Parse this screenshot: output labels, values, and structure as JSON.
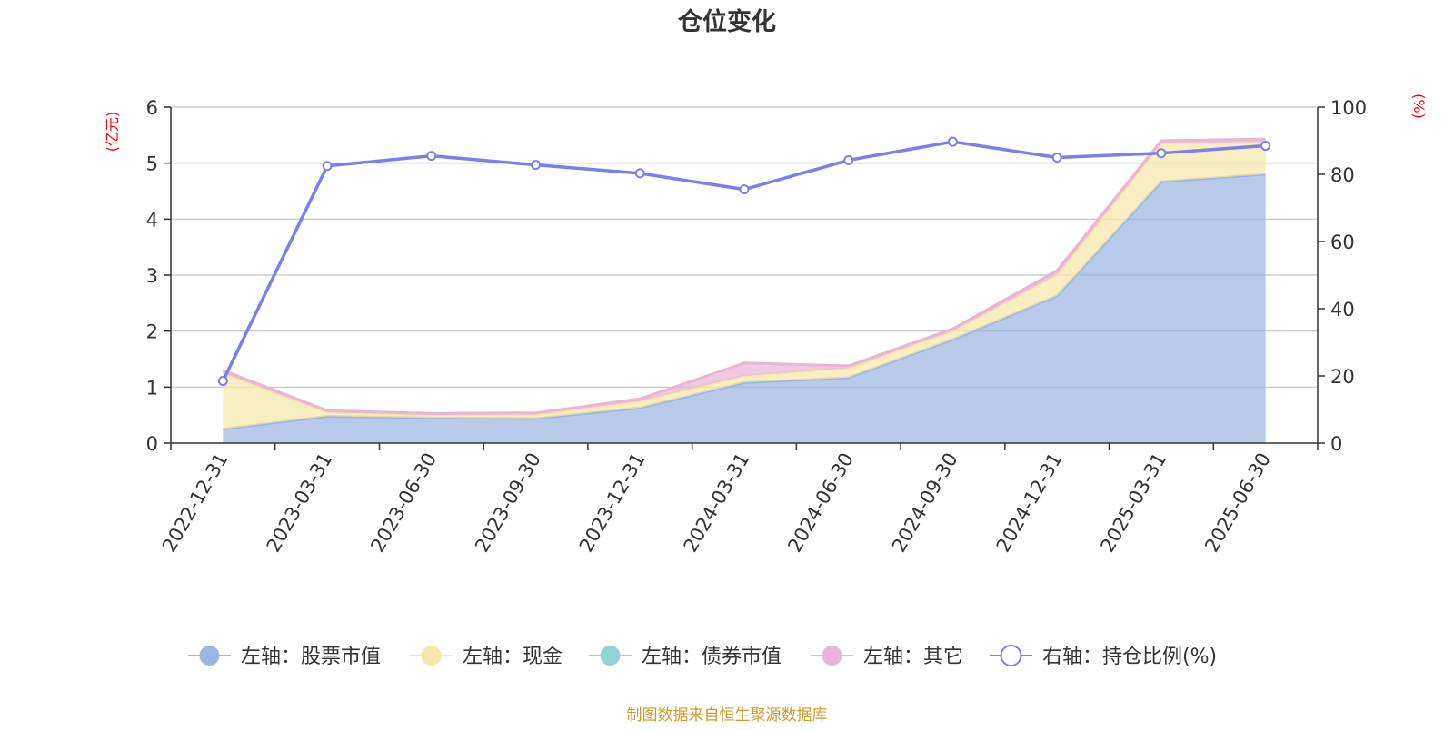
{
  "chart_data": {
    "type": "area",
    "title": "仓位变化",
    "left_axis_unit": "(亿元)",
    "right_axis_unit": "(%)",
    "categories": [
      "2022-12-31",
      "2023-03-31",
      "2023-06-30",
      "2023-09-30",
      "2023-12-31",
      "2024-03-31",
      "2024-06-30",
      "2024-09-30",
      "2024-12-31",
      "2025-03-31",
      "2025-06-30"
    ],
    "left_axis": {
      "min": 0,
      "max": 6,
      "ticks": [
        "0",
        "1",
        "2",
        "3",
        "4",
        "5",
        "6"
      ]
    },
    "right_axis": {
      "min": 0,
      "max": 100,
      "ticks": [
        "0",
        "20",
        "40",
        "60",
        "80",
        "100"
      ]
    },
    "series": [
      {
        "name": "左轴：股票市值",
        "axis": "left",
        "kind": "stacked-area",
        "color": "#9bb5e0",
        "values": [
          0.25,
          0.48,
          0.45,
          0.44,
          0.63,
          1.08,
          1.17,
          1.85,
          2.63,
          4.67,
          4.8
        ]
      },
      {
        "name": "左轴：现金",
        "axis": "left",
        "kind": "stacked-area",
        "color": "#f7e7a6",
        "values": [
          1.0,
          0.07,
          0.05,
          0.07,
          0.12,
          0.12,
          0.17,
          0.15,
          0.38,
          0.68,
          0.58
        ]
      },
      {
        "name": "左轴：债券市值",
        "axis": "left",
        "kind": "stacked-area",
        "color": "#8fd3d3",
        "values": [
          0,
          0,
          0,
          0,
          0,
          0,
          0,
          0,
          0,
          0,
          0
        ]
      },
      {
        "name": "左轴：其它",
        "axis": "left",
        "kind": "stacked-area",
        "color": "#e9b4d8",
        "values": [
          0.05,
          0.03,
          0.03,
          0.03,
          0.04,
          0.23,
          0.04,
          0.04,
          0.07,
          0.05,
          0.05
        ]
      },
      {
        "name": "右轴：持仓比例(%)",
        "axis": "right",
        "kind": "line",
        "color": "#7a7ef0",
        "values": [
          18.5,
          82.5,
          85.5,
          82.8,
          80.3,
          75.5,
          84.2,
          89.7,
          85.0,
          86.3,
          88.5
        ]
      }
    ],
    "grid": true,
    "legend_position": "bottom"
  },
  "footer": {
    "source": "制图数据来自恒生聚源数据库"
  }
}
